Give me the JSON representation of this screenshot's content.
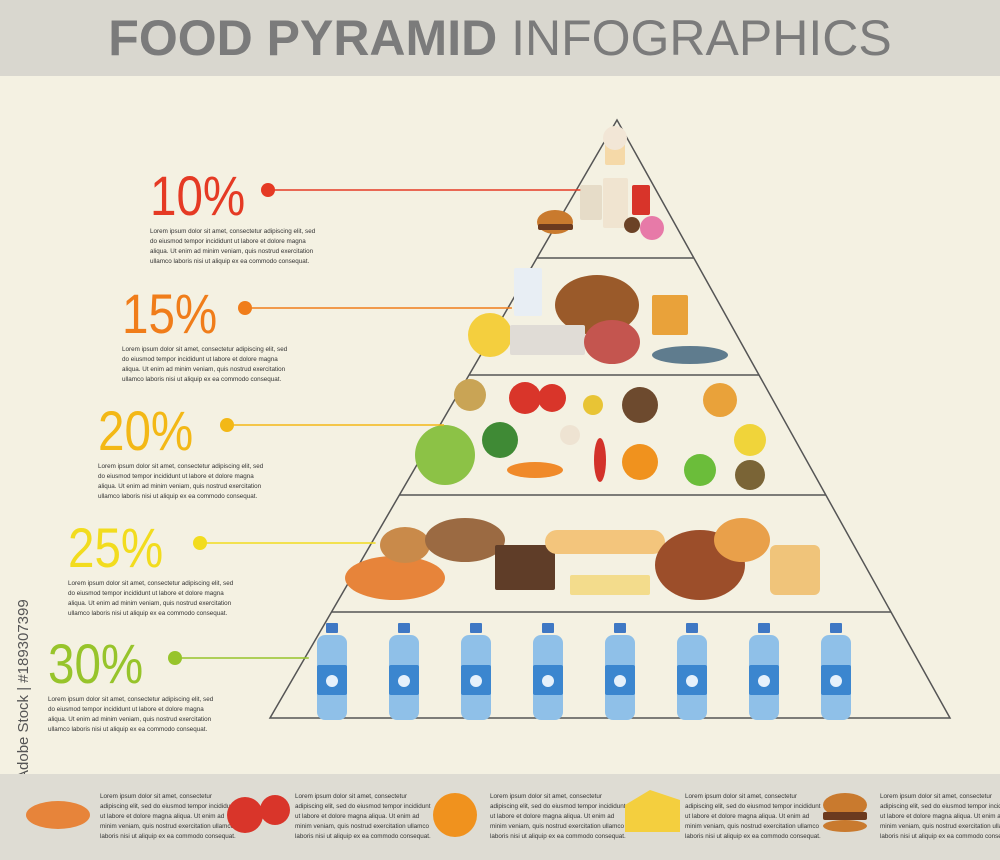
{
  "header": {
    "title_bold": "FOOD PYRAMID",
    "title_light": "INFOGRAPHICS"
  },
  "watermark": "Adobe Stock | #189307399",
  "tiers": [
    {
      "percent": "10%",
      "text": [
        "Lorem ipsum dolor sit amet, consectetur adipiscing elit, sed",
        "do eiusmod tempor incididunt ut labore et dolore magna",
        "aliqua. Ut enim ad minim veniam, quis nostrud exercitation",
        "ullamco laboris nisi ut aliquip ex ea commodo consequat."
      ]
    },
    {
      "percent": "15%",
      "text": [
        "Lorem ipsum dolor sit amet, consectetur adipiscing elit, sed",
        "do eiusmod tempor incididunt ut labore et dolore magna",
        "aliqua. Ut enim ad minim veniam, quis nostrud exercitation",
        "ullamco laboris nisi ut aliquip ex ea commodo consequat."
      ]
    },
    {
      "percent": "20%",
      "text": [
        "Lorem ipsum dolor sit amet, consectetur adipiscing elit, sed",
        "do eiusmod tempor incididunt ut labore et dolore magna",
        "aliqua. Ut enim ad minim veniam, quis nostrud exercitation",
        "ullamco laboris nisi ut aliquip ex ea commodo consequat."
      ]
    },
    {
      "percent": "25%",
      "text": [
        "Lorem ipsum dolor sit amet, consectetur adipiscing elit, sed",
        "do eiusmod tempor incididunt ut labore et dolore magna",
        "aliqua. Ut enim ad minim veniam, quis nostrud exercitation",
        "ullamco laboris nisi ut aliquip ex ea commodo consequat."
      ]
    },
    {
      "percent": "30%",
      "text": [
        "Lorem ipsum dolor sit amet, consectetur adipiscing elit, sed",
        "do eiusmod tempor incididunt ut labore et dolore magna",
        "aliqua. Ut enim ad minim veniam, quis nostrud exercitation",
        "ullamco laboris nisi ut aliquip ex ea commodo consequat."
      ]
    }
  ],
  "footer": [
    {
      "text": [
        "Lorem ipsum dolor sit amet, consectetur",
        "adipiscing elit, sed do eiusmod tempor incididunt",
        "ut labore et dolore magna aliqua. Ut enim ad",
        "minim veniam, quis nostrud exercitation ullamco",
        "laboris nisi ut aliquip ex ea commodo consequat."
      ]
    },
    {
      "text": [
        "Lorem ipsum dolor sit amet, consectetur",
        "adipiscing elit, sed do eiusmod tempor incididunt",
        "ut labore et dolore magna aliqua. Ut enim ad",
        "minim veniam, quis nostrud exercitation ullamco",
        "laboris nisi ut aliquip ex ea commodo consequat."
      ]
    },
    {
      "text": [
        "Lorem ipsum dolor sit amet, consectetur",
        "adipiscing elit, sed do eiusmod tempor incididunt",
        "ut labore et dolore magna aliqua. Ut enim ad",
        "minim veniam, quis nostrud exercitation ullamco",
        "laboris nisi ut aliquip ex ea commodo consequat."
      ]
    },
    {
      "text": [
        "Lorem ipsum dolor sit amet, consectetur",
        "adipiscing elit, sed do eiusmod tempor incididunt",
        "ut labore et dolore magna aliqua. Ut enim ad",
        "minim veniam, quis nostrud exercitation ullamco",
        "laboris nisi ut aliquip ex ea commodo consequat."
      ]
    },
    {
      "text": [
        "Lorem ipsum dolor sit amet, consectetur",
        "adipiscing elit, sed do eiusmod tempor incididunt",
        "ut labore et dolore magna aliqua. Ut enim ad",
        "minim veniam, quis nostrud exercitation ullamco",
        "laboris nisi ut aliquip ex ea commodo consequat."
      ]
    }
  ]
}
